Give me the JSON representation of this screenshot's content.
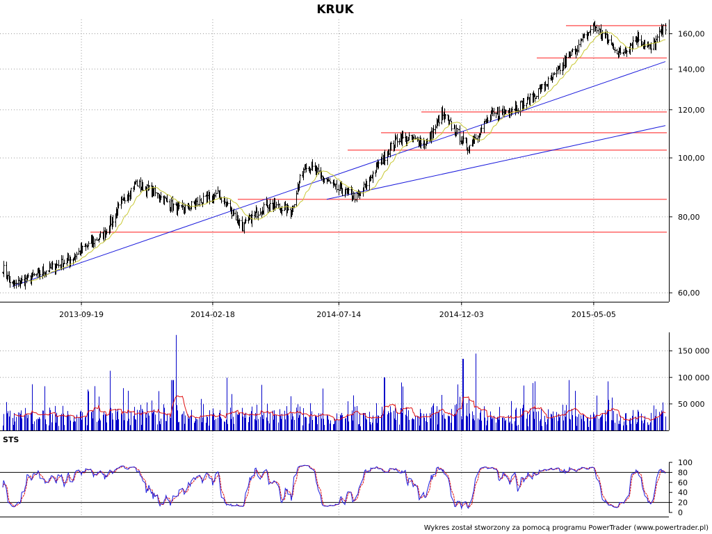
{
  "chart_data": {
    "title": "KRUK",
    "footer": "Wykres został stworzony za pomocą programu PowerTrader (www.powertrader.pl)",
    "x_dates": [
      "2013-09-19",
      "2014-02-18",
      "2014-07-14",
      "2014-12-03",
      "2015-05-05"
    ],
    "price": {
      "type": "bar",
      "scale": "log",
      "ylim": [
        58,
        168
      ],
      "yticks": [
        60,
        80,
        100,
        120,
        140,
        160
      ],
      "ytick_labels": [
        "60,00",
        "80,00",
        "100,00",
        "120,00",
        "140,00",
        "160,00"
      ],
      "moving_average_color": "#c8c832",
      "bar_color": "#000000",
      "support_resistance_levels": [
        75.5,
        85.5,
        103,
        110,
        119,
        146,
        165
      ],
      "level_color": "#ff6464",
      "trendlines": [
        {
          "from": [
            "2013-07-01",
            61.5
          ],
          "to": [
            "2015-07-27",
            144
          ],
          "color": "#1a1adc"
        },
        {
          "from": [
            "2014-06-30",
            85.5
          ],
          "to": [
            "2015-07-27",
            113
          ],
          "color": "#1a1adc"
        }
      ],
      "key_points": [
        {
          "date": "2013-06-20",
          "close": 66
        },
        {
          "date": "2013-07-01",
          "close": 61.5
        },
        {
          "date": "2013-09-05",
          "close": 68
        },
        {
          "date": "2013-10-15",
          "close": 75
        },
        {
          "date": "2013-11-20",
          "close": 91
        },
        {
          "date": "2013-12-10",
          "close": 88
        },
        {
          "date": "2014-01-10",
          "close": 82
        },
        {
          "date": "2014-02-25",
          "close": 87
        },
        {
          "date": "2014-03-25",
          "close": 77
        },
        {
          "date": "2014-04-20",
          "close": 84
        },
        {
          "date": "2014-05-20",
          "close": 82
        },
        {
          "date": "2014-06-05",
          "close": 98
        },
        {
          "date": "2014-07-10",
          "close": 89
        },
        {
          "date": "2014-08-05",
          "close": 86
        },
        {
          "date": "2014-09-20",
          "close": 108
        },
        {
          "date": "2014-10-25",
          "close": 106
        },
        {
          "date": "2014-11-10",
          "close": 118
        },
        {
          "date": "2014-12-10",
          "close": 104
        },
        {
          "date": "2015-01-05",
          "close": 117
        },
        {
          "date": "2015-02-15",
          "close": 123
        },
        {
          "date": "2015-03-20",
          "close": 136
        },
        {
          "date": "2015-04-20",
          "close": 155
        },
        {
          "date": "2015-05-05",
          "close": 165
        },
        {
          "date": "2015-06-05",
          "close": 148
        },
        {
          "date": "2015-06-25",
          "close": 158
        },
        {
          "date": "2015-07-10",
          "close": 151
        },
        {
          "date": "2015-07-27",
          "close": 165
        }
      ]
    },
    "volume": {
      "type": "bar",
      "yticks": [
        50000,
        100000,
        150000
      ],
      "ytick_labels": [
        "50 000",
        "100 000",
        "150 000"
      ],
      "ylim": [
        0,
        185000
      ],
      "bar_color": "#0000c8",
      "average_color": "#e01010",
      "peaks": [
        {
          "date": "2014-01-05",
          "value": 180000
        },
        {
          "date": "2014-01-02",
          "value": 95000
        },
        {
          "date": "2014-09-05",
          "value": 100000
        },
        {
          "date": "2014-12-05",
          "value": 135000
        },
        {
          "date": "2014-12-20",
          "value": 145000
        },
        {
          "date": "2015-04-05",
          "value": 95000
        }
      ]
    },
    "stochastic": {
      "label": "STS",
      "ylim": [
        0,
        100
      ],
      "yticks": [
        0,
        20,
        40,
        60,
        80,
        100
      ],
      "ytick_labels": [
        "0",
        "20",
        "40",
        "60",
        "80",
        "100"
      ],
      "reference_lines": [
        20,
        80
      ],
      "k_color": "#1a1adc",
      "d_color": "#e01010"
    }
  }
}
